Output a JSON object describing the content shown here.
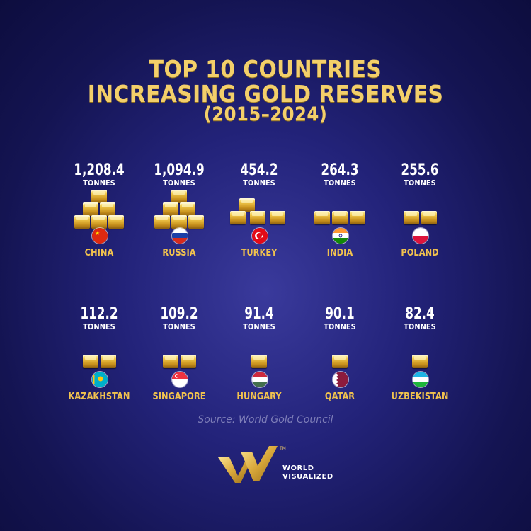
{
  "title": {
    "line1": "TOP 10 COUNTRIES",
    "line2": "INCREASING GOLD RESERVES",
    "years": "(2015–2024)"
  },
  "chart_data": {
    "type": "pictogram",
    "title": "TOP 10 COUNTRIES INCREASING GOLD RESERVES (2015–2024)",
    "unit": "TONNES",
    "categories": [
      "CHINA",
      "RUSSIA",
      "TURKEY",
      "INDIA",
      "POLAND",
      "KAZAKHSTAN",
      "SINGAPORE",
      "HUNGARY",
      "QATAR",
      "UZBEKISTAN"
    ],
    "values": [
      1208.4,
      1094.9,
      454.2,
      264.3,
      255.6,
      112.2,
      109.2,
      91.4,
      90.1,
      82.4
    ],
    "bar_counts": [
      6,
      6,
      4,
      3,
      2,
      2,
      2,
      1,
      1,
      1
    ],
    "items": [
      {
        "country": "CHINA",
        "value_label": "1,208.4",
        "unit": "TONNES",
        "flag_icon": "china-flag-icon"
      },
      {
        "country": "RUSSIA",
        "value_label": "1,094.9",
        "unit": "TONNES",
        "flag_icon": "russia-flag-icon"
      },
      {
        "country": "TURKEY",
        "value_label": "454.2",
        "unit": "TONNES",
        "flag_icon": "turkey-flag-icon"
      },
      {
        "country": "INDIA",
        "value_label": "264.3",
        "unit": "TONNES",
        "flag_icon": "india-flag-icon"
      },
      {
        "country": "POLAND",
        "value_label": "255.6",
        "unit": "TONNES",
        "flag_icon": "poland-flag-icon"
      },
      {
        "country": "KAZAKHSTAN",
        "value_label": "112.2",
        "unit": "TONNES",
        "flag_icon": "kazakhstan-flag-icon"
      },
      {
        "country": "SINGAPORE",
        "value_label": "109.2",
        "unit": "TONNES",
        "flag_icon": "singapore-flag-icon"
      },
      {
        "country": "HUNGARY",
        "value_label": "91.4",
        "unit": "TONNES",
        "flag_icon": "hungary-flag-icon"
      },
      {
        "country": "QATAR",
        "value_label": "90.1",
        "unit": "TONNES",
        "flag_icon": "qatar-flag-icon"
      },
      {
        "country": "UZBEKISTAN",
        "value_label": "82.4",
        "unit": "TONNES",
        "flag_icon": "uzbekistan-flag-icon"
      }
    ]
  },
  "source": "Source: World Gold Council",
  "logo": {
    "tm": "TM",
    "line1": "WORLD",
    "line2": "VISUALIZED"
  },
  "colors": {
    "background": "#1b1b66",
    "title_gold": "#f3cf6a",
    "country_gold": "#f1c24e",
    "bar_gold": "#e2b43c"
  }
}
